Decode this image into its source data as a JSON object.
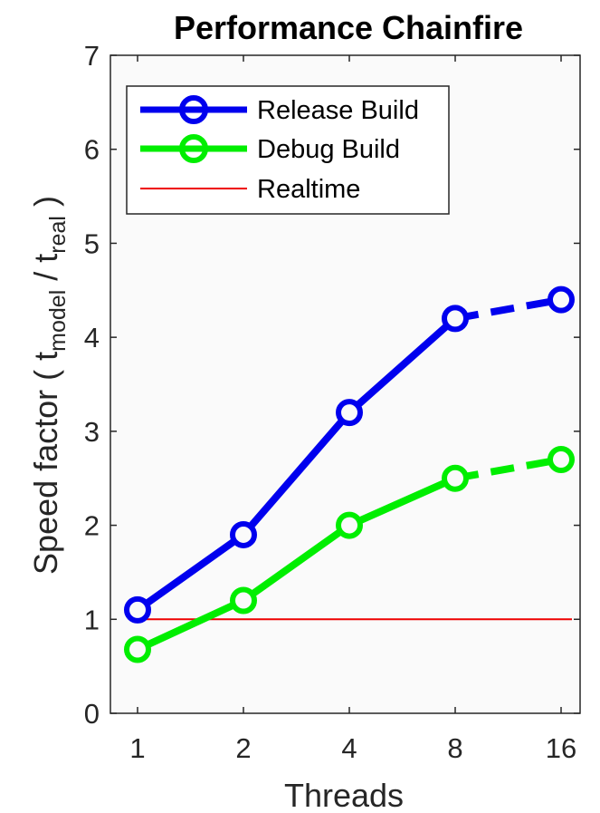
{
  "chart_data": {
    "type": "line",
    "title": "Performance Chainfire",
    "xlabel": "Threads",
    "ylabel": {
      "prefix": "Speed factor  ( t",
      "sub1": "model",
      "middle": " / t",
      "sub2": "real",
      "suffix": " )"
    },
    "categories": [
      "1",
      "2",
      "4",
      "8",
      "16"
    ],
    "ylim": [
      0,
      7
    ],
    "yticks": [
      "0",
      "1",
      "2",
      "3",
      "4",
      "5",
      "6",
      "7"
    ],
    "series": [
      {
        "name": "Release Build",
        "color": "#0000ee",
        "values": [
          1.1,
          1.9,
          3.2,
          4.2,
          4.4
        ],
        "dashed_last_segment": true
      },
      {
        "name": "Debug Build",
        "color": "#00ee00",
        "values": [
          0.68,
          1.2,
          2.0,
          2.5,
          2.7
        ],
        "dashed_last_segment": true
      }
    ],
    "reference_line": {
      "name": "Realtime",
      "color": "#ee0000",
      "value": 1
    },
    "legend_position": "top-left"
  }
}
